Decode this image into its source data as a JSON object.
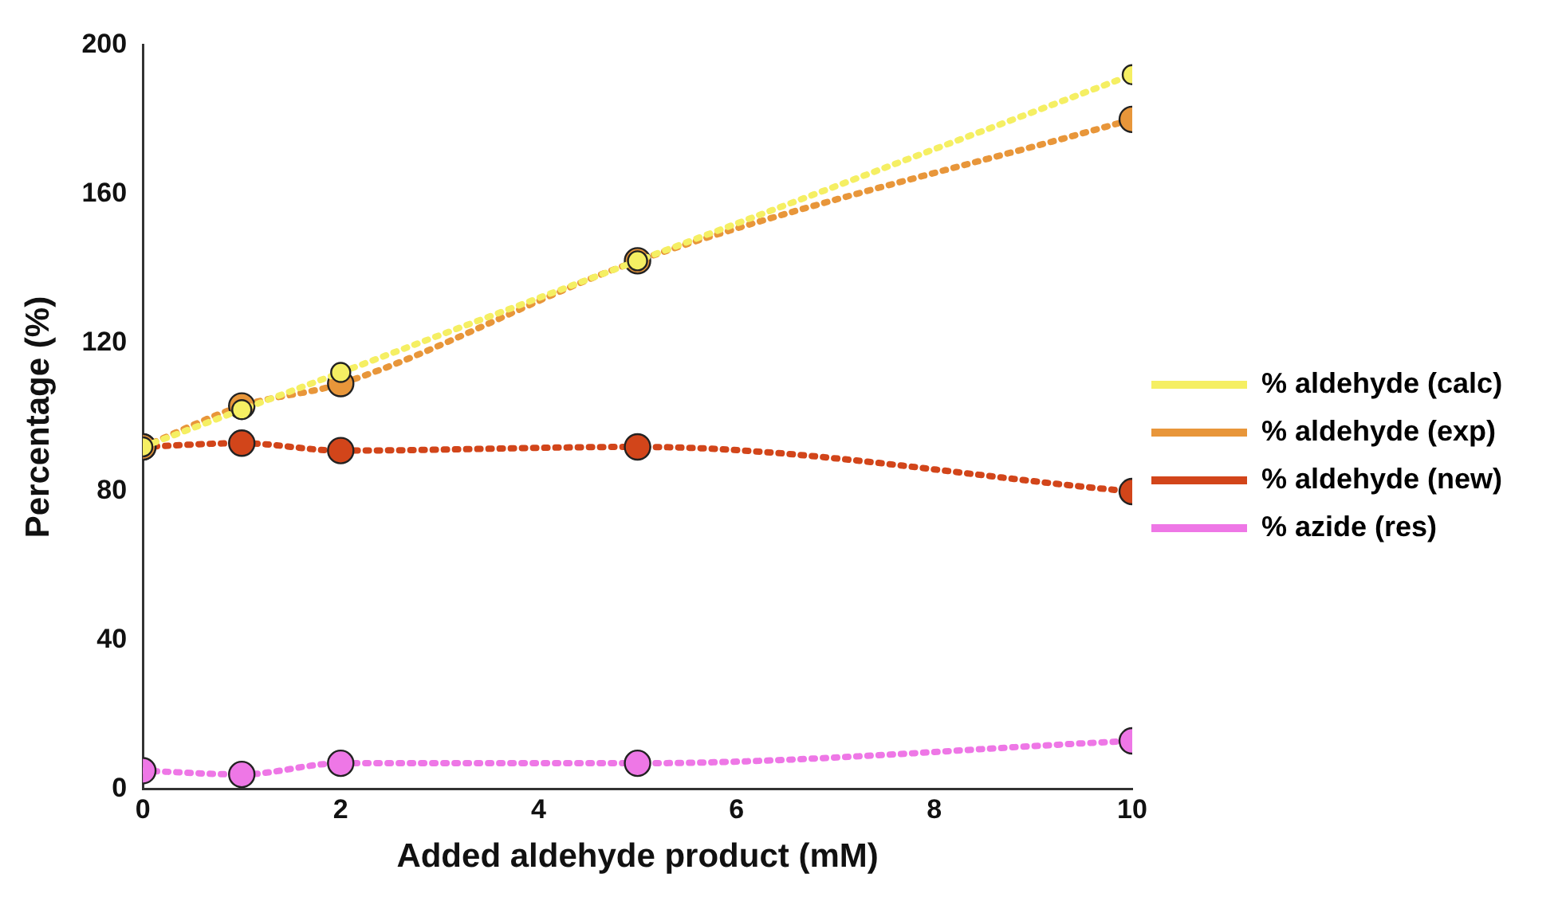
{
  "chart_data": {
    "type": "line",
    "xlabel": "Added aldehyde product (mM)",
    "ylabel": "Percentage (%)",
    "x": [
      0,
      1,
      2,
      5,
      10
    ],
    "series": [
      {
        "name": "% aldehyde (calc)",
        "color": "#f5ef63",
        "values": [
          92,
          102,
          112,
          142,
          192
        ]
      },
      {
        "name": "% aldehyde (exp)",
        "color": "#e8963a",
        "values": [
          92,
          103,
          109,
          142,
          180
        ]
      },
      {
        "name": "% aldehyde (new)",
        "color": "#d2451a",
        "values": [
          92,
          93,
          91,
          92,
          80
        ]
      },
      {
        "name": "% azide (res)",
        "color": "#ee77e6",
        "values": [
          5,
          4,
          7,
          7,
          13
        ]
      }
    ],
    "xlim": [
      0,
      10
    ],
    "xticks": [
      0,
      2,
      4,
      6,
      8,
      10
    ],
    "ylim": [
      0,
      200
    ],
    "yticks": [
      0,
      40,
      80,
      120,
      160,
      200
    ],
    "grid": false,
    "legend": "right",
    "marker": "circle",
    "line_style": "dotted"
  }
}
